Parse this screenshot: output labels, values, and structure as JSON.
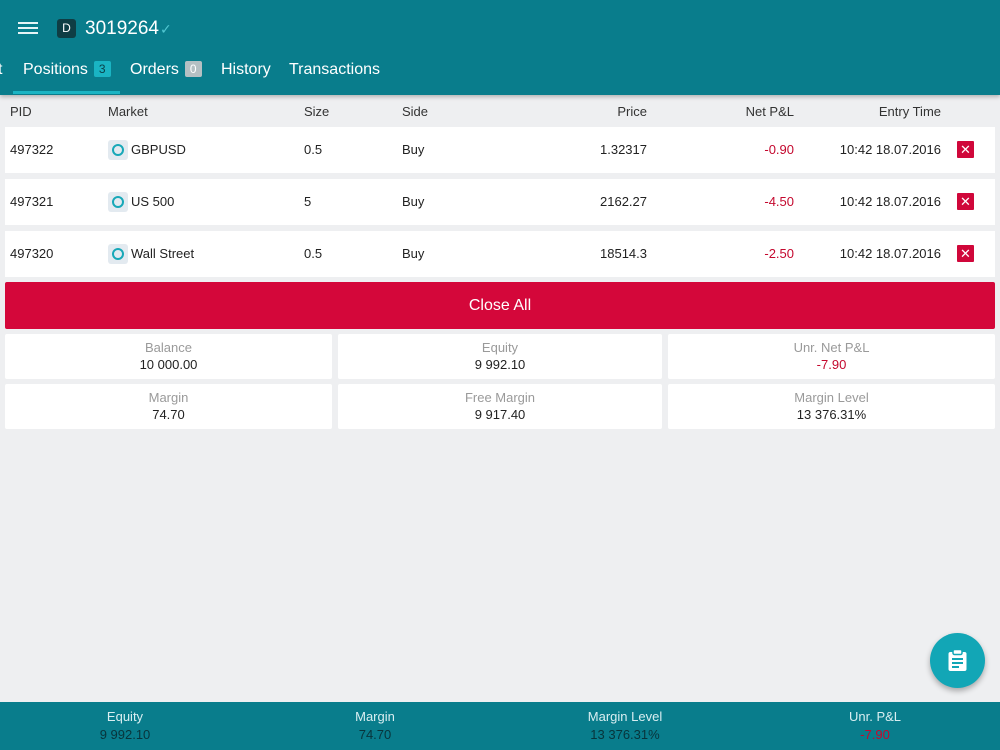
{
  "header": {
    "menu_icon": "hamburger-menu-icon",
    "account_badge": "D",
    "account_number": "3019264",
    "verified_icon": "check-icon",
    "verified_glyph": "✓"
  },
  "tabs": [
    {
      "label": "t"
    },
    {
      "label": "Positions",
      "count": "3",
      "active": true
    },
    {
      "label": "Orders",
      "count": "0"
    },
    {
      "label": "History"
    },
    {
      "label": "Transactions"
    }
  ],
  "table": {
    "columns": [
      "PID",
      "Market",
      "Size",
      "Side",
      "Price",
      "Net P&L",
      "Entry Time"
    ],
    "rows": [
      {
        "pid": "497322",
        "market": "GBPUSD",
        "size": "0.5",
        "side": "Buy",
        "price": "1.32317",
        "pnl": "-0.90",
        "entry_time": "10:42 18.07.2016"
      },
      {
        "pid": "497321",
        "market": "US 500",
        "size": "5",
        "side": "Buy",
        "price": "2162.27",
        "pnl": "-4.50",
        "entry_time": "10:42 18.07.2016"
      },
      {
        "pid": "497320",
        "market": "Wall Street",
        "size": "0.5",
        "side": "Buy",
        "price": "18514.3",
        "pnl": "-2.50",
        "entry_time": "10:42 18.07.2016"
      }
    ],
    "close_glyph": "✕"
  },
  "close_all_label": "Close All",
  "summary": [
    {
      "label": "Balance",
      "value": "10 000.00"
    },
    {
      "label": "Equity",
      "value": "9 992.10"
    },
    {
      "label": "Unr. Net P&L",
      "value": "-7.90"
    },
    {
      "label": "Margin",
      "value": "74.70"
    },
    {
      "label": "Free Margin",
      "value": "9 917.40"
    },
    {
      "label": "Margin Level",
      "value": "13 376.31%"
    }
  ],
  "fab_icon": "clipboard-icon",
  "bottom_bar": [
    {
      "label": "Equity",
      "value": "9 992.10"
    },
    {
      "label": "Margin",
      "value": "74.70"
    },
    {
      "label": "Margin Level",
      "value": "13 376.31%"
    },
    {
      "label": "Unr. P&L",
      "value": "-7.90"
    }
  ],
  "colors": {
    "primary": "#097d8c",
    "accent": "#1ab4c3",
    "danger": "#d4073a",
    "negative": "#c4082e",
    "background": "#eeeff1"
  }
}
